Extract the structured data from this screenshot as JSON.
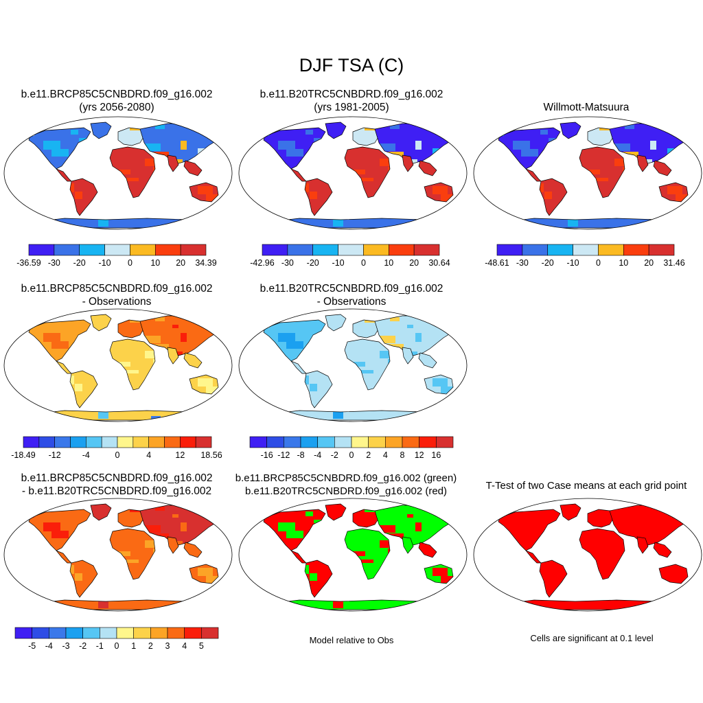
{
  "title": "DJF TSA (C)",
  "panels": [
    {
      "id": "p1",
      "line1": "b.e11.BRCP85C5CNBDRD.f09_g16.002",
      "line2": "(yrs 2056-2080)",
      "theme": "abs_future"
    },
    {
      "id": "p2",
      "line1": "b.e11.B20TRC5CNBDRD.f09_g16.002",
      "line2": "(yrs 1981-2005)",
      "theme": "abs_hist"
    },
    {
      "id": "p3",
      "line1": "",
      "line2": "Willmott-Matsuura",
      "theme": "abs_obs"
    },
    {
      "id": "p4",
      "line1": "b.e11.BRCP85C5CNBDRD.f09_g16.002",
      "line2": "- Observations",
      "theme": "diff_warm"
    },
    {
      "id": "p5",
      "line1": "b.e11.B20TRC5CNBDRD.f09_g16.002",
      "line2": "- Observations",
      "theme": "diff_cool"
    },
    {
      "id": "p6",
      "line1": "b.e11.BRCP85C5CNBDRD.f09_g16.002",
      "line2": "- b.e11.B20TRC5CNBDRD.f09_g16.002",
      "theme": "diff_warmer"
    },
    {
      "id": "p7",
      "line1": "b.e11.BRCP85C5CNBDRD.f09_g16.002 (green)",
      "line2": "b.e11.B20TRC5CNBDRD.f09_g16.002 (red)",
      "theme": "greenred"
    },
    {
      "id": "p8",
      "line1": "T-Test of two Case means at each grid point",
      "line2": "",
      "theme": "sig"
    }
  ],
  "colorbars": [
    {
      "id": "cb1",
      "colors": [
        "#3f1ff4",
        "#3a72e8",
        "#18b4f2",
        "#cce8f4",
        "#fbba22",
        "#fa3e0e",
        "#d8302f"
      ],
      "labels": [
        "-36.59",
        "-30",
        "-20",
        "-10",
        "0",
        "10",
        "20",
        "34.39"
      ]
    },
    {
      "id": "cb2",
      "colors": [
        "#3f1ff4",
        "#3a72e8",
        "#18b4f2",
        "#cce8f4",
        "#fbba22",
        "#fa3e0e",
        "#d8302f"
      ],
      "labels": [
        "-42.96",
        "-30",
        "-20",
        "-10",
        "0",
        "10",
        "20",
        "30.64"
      ]
    },
    {
      "id": "cb3",
      "colors": [
        "#3f1ff4",
        "#3a72e8",
        "#18b4f2",
        "#cce8f4",
        "#fbba22",
        "#fa3e0e",
        "#d8302f"
      ],
      "labels": [
        "-48.61",
        "-30",
        "-20",
        "-10",
        "0",
        "10",
        "20",
        "31.46"
      ]
    },
    {
      "id": "cb4",
      "colors": [
        "#3f1ff4",
        "#2e4de6",
        "#3a78ea",
        "#1ba0f0",
        "#56c6f4",
        "#b4e2f4",
        "#fff68c",
        "#fcd24a",
        "#fca426",
        "#fa6a14",
        "#fa1e0a",
        "#d8302f"
      ],
      "labels": [
        "-18.49",
        "-12",
        "-4",
        "0",
        "4",
        "12",
        "18.56"
      ]
    },
    {
      "id": "cb5",
      "colors": [
        "#3f1ff4",
        "#2e4de6",
        "#3a78ea",
        "#1ba0f0",
        "#56c6f4",
        "#b4e2f4",
        "#fff68c",
        "#fcd24a",
        "#fca426",
        "#fa6a14",
        "#fa1e0a",
        "#d8302f"
      ],
      "labels": [
        "-16",
        "-12",
        "-8",
        "-4",
        "-2",
        "0",
        "2",
        "4",
        "8",
        "12",
        "16"
      ]
    },
    {
      "id": "cb6",
      "colors": [
        "#3f1ff4",
        "#2e4de6",
        "#3a78ea",
        "#1ba0f0",
        "#56c6f4",
        "#b4e2f4",
        "#fff68c",
        "#fcd24a",
        "#fca426",
        "#fa6a14",
        "#fa1e0a",
        "#d8302f"
      ],
      "labels": [
        "-5",
        "-4",
        "-3",
        "-2",
        "-1",
        "0",
        "1",
        "2",
        "3",
        "4",
        "5"
      ]
    }
  ],
  "notes": {
    "greenred": "Model relative to Obs",
    "sig": "Cells are significant at 0.1 level"
  }
}
